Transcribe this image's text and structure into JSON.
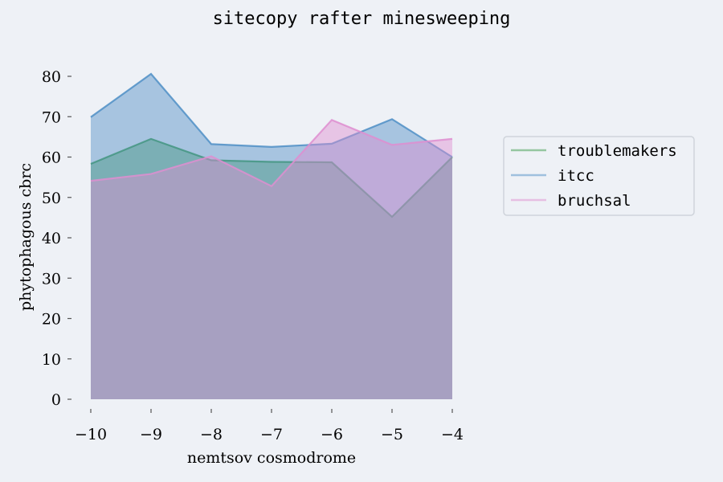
{
  "chart_data": {
    "type": "area",
    "title": "sitecopy rafter minesweeping",
    "xlabel": "nemtsov cosmodrome",
    "ylabel": "phytophagous cbrc",
    "x": [
      -10,
      -9,
      -8,
      -7,
      -6,
      -5,
      -4
    ],
    "xlim": [
      -10,
      -4
    ],
    "ylim": [
      0,
      80
    ],
    "x_ticks": [
      -10,
      -9,
      -8,
      -7,
      -6,
      -5,
      -4
    ],
    "x_tick_labels": [
      "−10",
      "−9",
      "−8",
      "−7",
      "−6",
      "−5",
      "−4"
    ],
    "y_ticks": [
      0,
      10,
      20,
      30,
      40,
      50,
      60,
      70,
      80
    ],
    "y_tick_labels": [
      "0",
      "10",
      "20",
      "30",
      "40",
      "50",
      "60",
      "70",
      "80"
    ],
    "grid": false,
    "legend_position": "right",
    "series": [
      {
        "name": "troublemakers",
        "values": [
          58.3,
          64.5,
          59.2,
          58.8,
          58.7,
          45.2,
          60.0
        ],
        "color": "#3b9c4a"
      },
      {
        "name": "itcc",
        "values": [
          69.9,
          80.6,
          63.2,
          62.5,
          63.3,
          69.4,
          60.0
        ],
        "color": "#4f8fc5"
      },
      {
        "name": "bruchsal",
        "values": [
          54.1,
          55.8,
          60.2,
          52.8,
          69.2,
          63.0,
          64.5
        ],
        "color": "#de8ed0"
      }
    ]
  }
}
